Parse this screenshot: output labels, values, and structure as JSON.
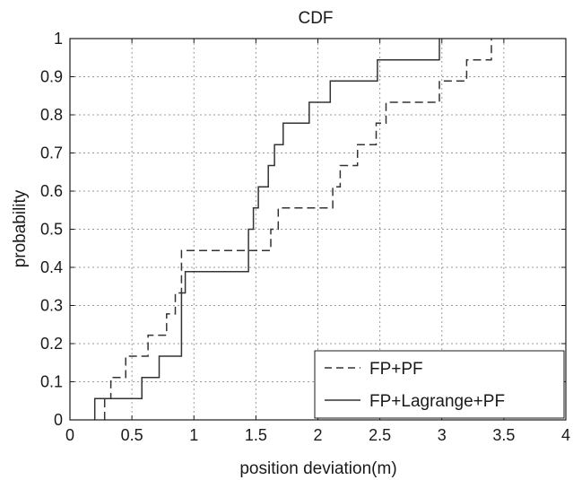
{
  "chart_data": {
    "type": "line",
    "title": "CDF",
    "xlabel": "position deviation(m)",
    "ylabel": "probability",
    "xlim": [
      0,
      4
    ],
    "ylim": [
      0,
      1
    ],
    "xticks": [
      "0",
      "0.5",
      "1",
      "1.5",
      "2",
      "2.5",
      "3",
      "3.5",
      "4"
    ],
    "yticks": [
      "0",
      "0.1",
      "0.2",
      "0.3",
      "0.4",
      "0.5",
      "0.6",
      "0.7",
      "0.8",
      "0.9",
      "1"
    ],
    "grid": true,
    "legend_position": "bottom-right",
    "series": [
      {
        "name": "FP+PF",
        "style": "dashed",
        "color": "#333333",
        "x": [
          0.28,
          0.28,
          0.33,
          0.33,
          0.45,
          0.45,
          0.63,
          0.63,
          0.78,
          0.78,
          0.85,
          0.85,
          0.9,
          0.9,
          1.62,
          1.62,
          1.68,
          1.68,
          2.12,
          2.12,
          2.18,
          2.18,
          2.32,
          2.32,
          2.47,
          2.47,
          2.55,
          2.55,
          2.98,
          2.98,
          3.2,
          3.2,
          3.4,
          3.4
        ],
        "y": [
          0,
          0.056,
          0.056,
          0.111,
          0.111,
          0.167,
          0.167,
          0.222,
          0.222,
          0.278,
          0.278,
          0.333,
          0.333,
          0.444,
          0.444,
          0.5,
          0.5,
          0.556,
          0.556,
          0.611,
          0.611,
          0.667,
          0.667,
          0.722,
          0.722,
          0.778,
          0.778,
          0.833,
          0.833,
          0.889,
          0.889,
          0.944,
          0.944,
          1.0
        ]
      },
      {
        "name": "FP+Lagrange+PF",
        "style": "solid",
        "color": "#333333",
        "x": [
          0.2,
          0.2,
          0.58,
          0.58,
          0.72,
          0.72,
          0.9,
          0.9,
          0.93,
          0.93,
          1.44,
          1.44,
          1.48,
          1.48,
          1.52,
          1.52,
          1.6,
          1.6,
          1.65,
          1.65,
          1.72,
          1.72,
          1.93,
          1.93,
          2.1,
          2.1,
          2.48,
          2.48,
          2.98,
          2.98
        ],
        "y": [
          0,
          0.056,
          0.056,
          0.111,
          0.111,
          0.167,
          0.167,
          0.333,
          0.333,
          0.389,
          0.389,
          0.5,
          0.5,
          0.556,
          0.556,
          0.611,
          0.611,
          0.667,
          0.667,
          0.722,
          0.722,
          0.778,
          0.778,
          0.833,
          0.833,
          0.889,
          0.889,
          0.944,
          0.944,
          1.0
        ]
      }
    ]
  }
}
